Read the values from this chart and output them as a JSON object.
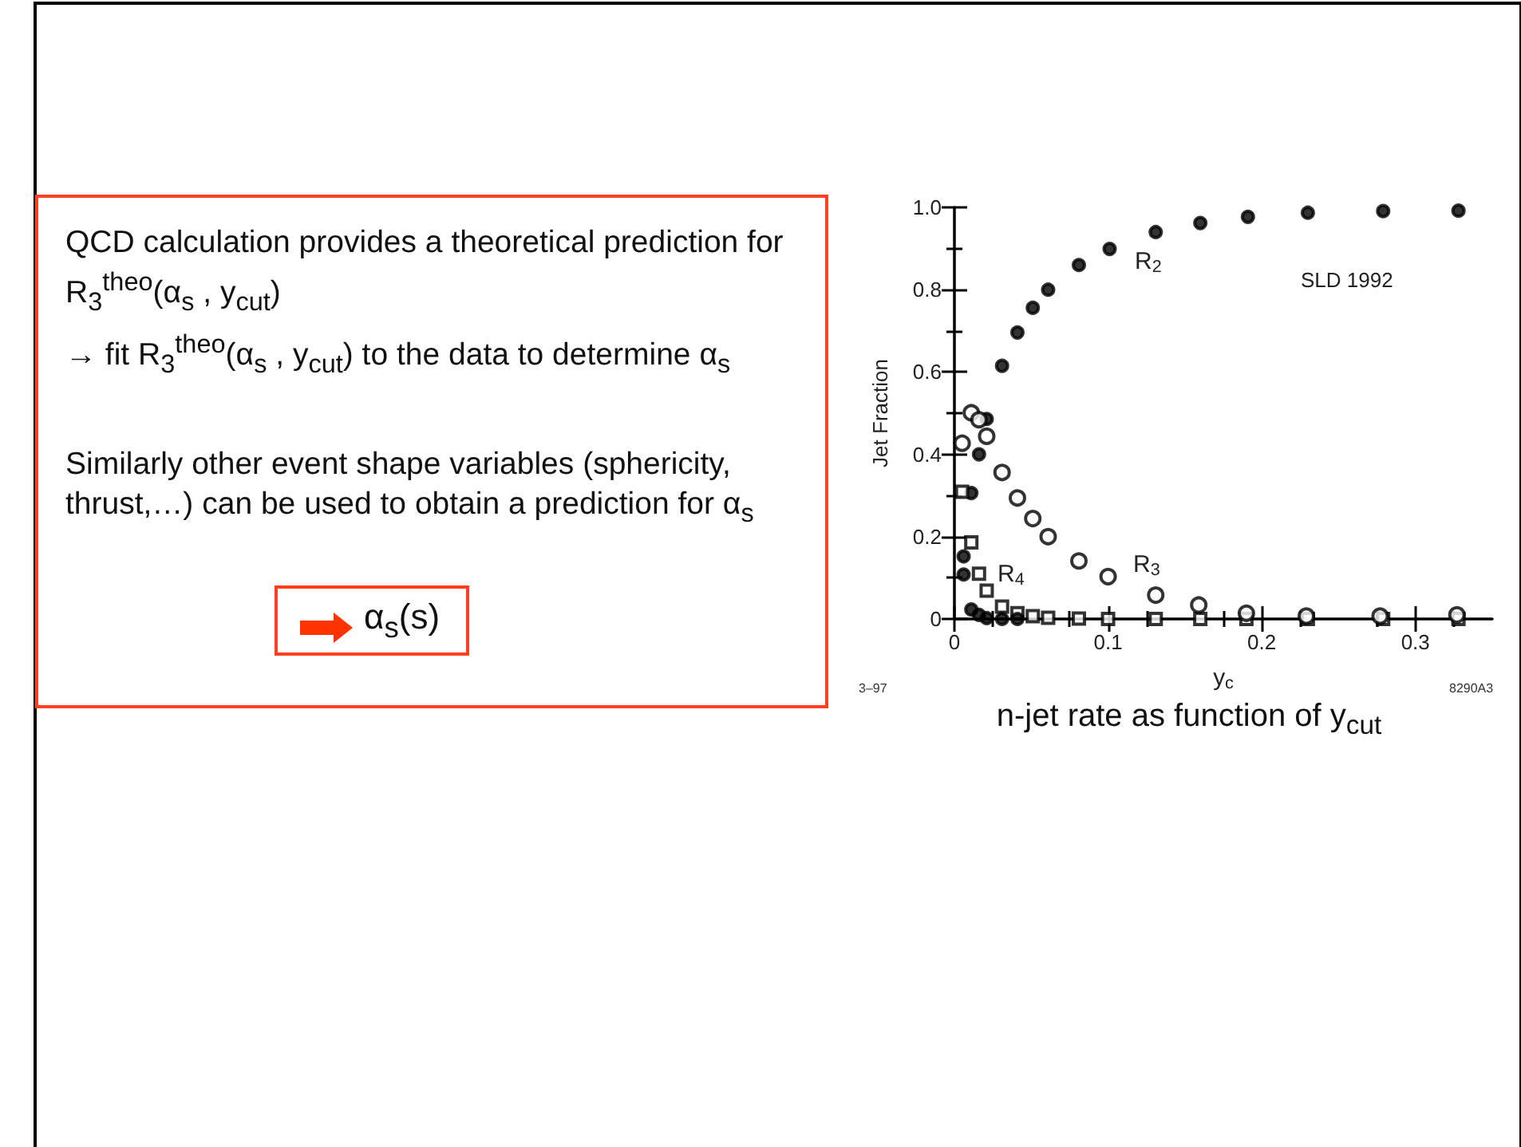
{
  "chart_data": {
    "type": "scatter",
    "title": "n-jet rate as function of y$_{cut}$",
    "xlabel": "y$_{c}$",
    "ylabel": "Jet Fraction",
    "xlim": [
      0,
      0.35
    ],
    "xticks": [
      0,
      0.1,
      0.2,
      0.3
    ],
    "ylim": [
      0,
      1
    ],
    "yticks": [
      0,
      0.2,
      0.4,
      0.6,
      0.8,
      {
        "value": 1,
        "label": "1.0"
      }
    ],
    "grid": false,
    "series": [
      {
        "color": "#000000",
        "marker": "circle",
        "x": [
          0.006,
          0.011,
          0.016,
          0.021,
          0.031,
          0.041,
          0.051,
          0.061,
          0.081,
          0.101,
          0.131,
          0.16,
          0.191,
          0.23,
          0.279,
          0.328
        ],
        "values": [
          0.152,
          0.306,
          0.4,
          0.486,
          0.615,
          0.696,
          0.756,
          0.8,
          0.86,
          0.899,
          0.94,
          0.962,
          0.977,
          0.987,
          0.991,
          0.992
        ]
      },
      {
        "color": "#000000",
        "marker": "open circle",
        "x": [
          0.005,
          0.011,
          0.016,
          0.021,
          0.031,
          0.041,
          0.051,
          0.061,
          0.081,
          0.1,
          0.131,
          0.159,
          0.19,
          0.229,
          0.277,
          0.327
        ],
        "values": [
          0.427,
          0.501,
          0.484,
          0.444,
          0.356,
          0.294,
          0.244,
          0.2,
          0.141,
          0.103,
          0.058,
          0.034,
          0.014,
          0.007,
          0.007,
          0.01
        ]
      },
      {
        "color": "#000000",
        "marker": "square",
        "x": [
          0.005,
          0.011,
          0.016,
          0.021,
          0.031,
          0.041,
          0.051,
          0.061,
          0.081,
          0.1,
          0.131,
          0.16,
          0.19,
          0.23,
          0.279,
          0.328
        ],
        "values": [
          0.309,
          0.186,
          0.11,
          0.069,
          0.03,
          0.014,
          0.007,
          0.003,
          0.001,
          0,
          0,
          0,
          0,
          0,
          0,
          0
        ]
      },
      {
        "color": "#000000",
        "marker": "circle",
        "x": [
          0.006,
          0.011,
          0.016,
          0.021,
          0.031,
          0.041
        ],
        "values": [
          0.108,
          0.023,
          0.01,
          0.002,
          0,
          0
        ]
      }
    ],
    "annotations": [
      "QCD calculation provides a theoretical prediction for R$_{3}$$^{theo}$(α$_{s}$ , y$_{cut}$)",
      "→ fit  R$_{3}$$^{theo}$(α$_{s}$ , y$_{cut}$) to the data to determine α$_{s}$",
      "Similarly other event shape variables (sphericity, thrust,…) can be used to obtain a prediction for α$_{s}$",
      "α$_{s}$(s)",
      "3–97",
      "8290A3",
      "R$_{2}$",
      "R$_{3}$",
      "R$_{4}$",
      "SLD 1992"
    ]
  }
}
